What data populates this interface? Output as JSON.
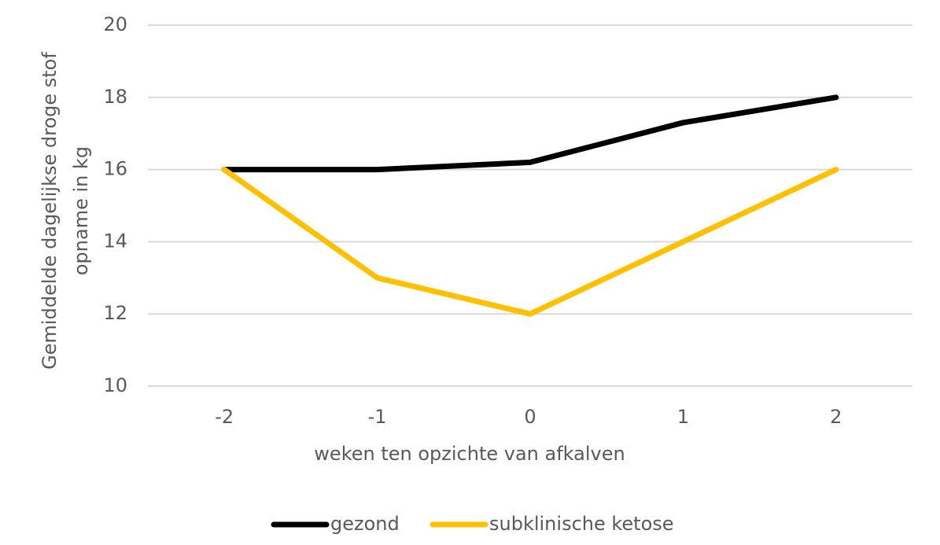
{
  "chart_data": {
    "type": "line",
    "x_label": "weken ten opzichte van afkalven",
    "y_label": [
      "Gemiddelde dagelijkse droge stof",
      "opname in kg"
    ],
    "categories": [
      "-2",
      "-1",
      "0",
      "1",
      "2"
    ],
    "series": [
      {
        "name": "gezond",
        "color": "#000000",
        "values": [
          16,
          16,
          16.2,
          17.3,
          18
        ]
      },
      {
        "name": "subklinische ketose",
        "color": "#ffc000",
        "values": [
          16,
          13,
          12,
          14,
          16
        ]
      }
    ],
    "ylim": [
      10,
      20
    ],
    "yticks": [
      10,
      12,
      14,
      16,
      18,
      20
    ],
    "grid": true,
    "legend": "bottom"
  }
}
